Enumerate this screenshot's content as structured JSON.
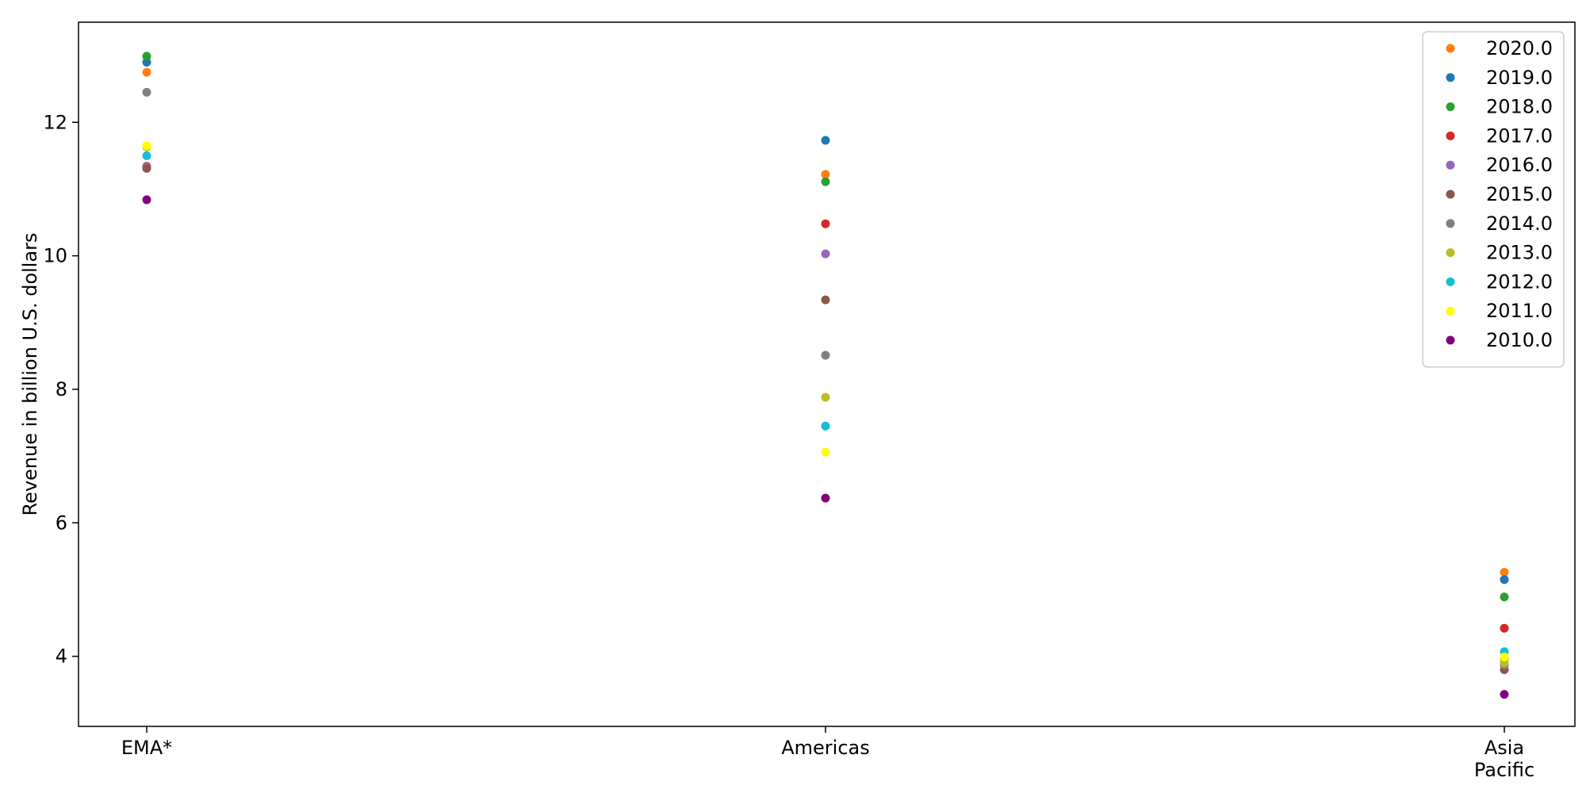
{
  "chart_data": {
    "type": "scatter",
    "title": "",
    "xlabel": "",
    "ylabel": "Revenue in billion U.S. dollars",
    "categories": [
      "EMA*",
      "Americas",
      "Asia\nPacific"
    ],
    "ylim": [
      2.95,
      13.5
    ],
    "yticks": [
      4,
      6,
      8,
      10,
      12
    ],
    "grid": false,
    "legend_position": "top-right",
    "series": [
      {
        "name": "2020.0",
        "color": "#ff7f0e",
        "values": [
          12.75,
          11.22,
          5.26
        ]
      },
      {
        "name": "2019.0",
        "color": "#1f77b4",
        "values": [
          12.9,
          11.73,
          5.15
        ]
      },
      {
        "name": "2018.0",
        "color": "#2ca02c",
        "values": [
          12.99,
          11.11,
          4.89
        ]
      },
      {
        "name": "2017.0",
        "color": "#d62728",
        "values": [
          11.34,
          10.48,
          4.42
        ]
      },
      {
        "name": "2016.0",
        "color": "#9467bd",
        "values": [
          11.33,
          10.03,
          3.97
        ]
      },
      {
        "name": "2015.0",
        "color": "#8c564b",
        "values": [
          11.31,
          9.34,
          3.8
        ]
      },
      {
        "name": "2014.0",
        "color": "#7f7f7f",
        "values": [
          12.45,
          8.51,
          3.87
        ]
      },
      {
        "name": "2013.0",
        "color": "#bcbd22",
        "values": [
          11.63,
          7.88,
          3.9
        ]
      },
      {
        "name": "2012.0",
        "color": "#17becf",
        "values": [
          11.5,
          7.45,
          4.07
        ]
      },
      {
        "name": "2011.0",
        "color": "#ffff00",
        "values": [
          11.65,
          7.06,
          3.99
        ]
      },
      {
        "name": "2010.0",
        "color": "#800080",
        "values": [
          10.84,
          6.37,
          3.43
        ]
      }
    ]
  }
}
